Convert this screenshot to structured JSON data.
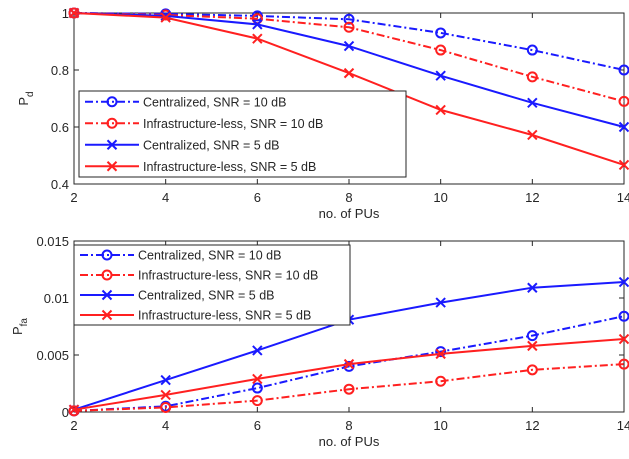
{
  "chart_data": [
    {
      "type": "line",
      "title": "",
      "xlabel": "no. of PUs",
      "ylabel": "P",
      "ylabel_sub": "d",
      "x": [
        2,
        4,
        6,
        8,
        10,
        12,
        14
      ],
      "xlim": [
        2,
        14
      ],
      "ylim": [
        0.4,
        1.0
      ],
      "xticks": [
        "2",
        "4",
        "6",
        "8",
        "10",
        "12",
        "14"
      ],
      "yticks": [
        "0.4",
        "0.6",
        "0.8",
        "1"
      ],
      "legend_position": "bottom-left",
      "series": [
        {
          "name": "Centralized, SNR = 10 dB",
          "color": "#1a1aff",
          "dash": "dashdot",
          "marker": "circle",
          "values": [
            1.0,
            0.997,
            0.99,
            0.978,
            0.93,
            0.87,
            0.8
          ]
        },
        {
          "name": "Infrastructure-less, SNR = 10 dB",
          "color": "#ff2020",
          "dash": "dashdot",
          "marker": "circle",
          "values": [
            1.0,
            0.993,
            0.98,
            0.95,
            0.87,
            0.776,
            0.69
          ]
        },
        {
          "name": "Centralized, SNR = 5 dB",
          "color": "#1a1aff",
          "dash": "solid",
          "marker": "x",
          "values": [
            1.0,
            0.99,
            0.96,
            0.884,
            0.78,
            0.685,
            0.6
          ]
        },
        {
          "name": "Infrastructure-less, SNR = 5 dB",
          "color": "#ff2020",
          "dash": "solid",
          "marker": "x",
          "values": [
            1.0,
            0.984,
            0.91,
            0.789,
            0.66,
            0.572,
            0.467
          ]
        }
      ]
    },
    {
      "type": "line",
      "title": "",
      "xlabel": "no. of PUs",
      "ylabel": "P",
      "ylabel_sub": "fa",
      "x": [
        2,
        4,
        6,
        8,
        10,
        12,
        14
      ],
      "xlim": [
        2,
        14
      ],
      "ylim": [
        0,
        0.015
      ],
      "xticks": [
        "2",
        "4",
        "6",
        "8",
        "10",
        "12",
        "14"
      ],
      "yticks": [
        "0",
        "0.005",
        "0.01",
        "0.015"
      ],
      "legend_position": "top-left",
      "series": [
        {
          "name": "Centralized, SNR = 10 dB",
          "color": "#1a1aff",
          "dash": "dashdot",
          "marker": "circle",
          "values": [
            0.0001,
            0.0005,
            0.0021,
            0.004,
            0.0053,
            0.0067,
            0.0084
          ]
        },
        {
          "name": "Infrastructure-less, SNR = 10 dB",
          "color": "#ff2020",
          "dash": "dashdot",
          "marker": "circle",
          "values": [
            0.0001,
            0.0004,
            0.001,
            0.002,
            0.0027,
            0.0037,
            0.0042
          ]
        },
        {
          "name": "Centralized, SNR = 5 dB",
          "color": "#1a1aff",
          "dash": "solid",
          "marker": "x",
          "values": [
            0.0002,
            0.0028,
            0.0054,
            0.0081,
            0.0096,
            0.0109,
            0.0114
          ]
        },
        {
          "name": "Infrastructure-less, SNR = 5 dB",
          "color": "#ff2020",
          "dash": "solid",
          "marker": "x",
          "values": [
            0.0002,
            0.0015,
            0.0029,
            0.0042,
            0.0051,
            0.0058,
            0.0064
          ]
        }
      ]
    }
  ]
}
